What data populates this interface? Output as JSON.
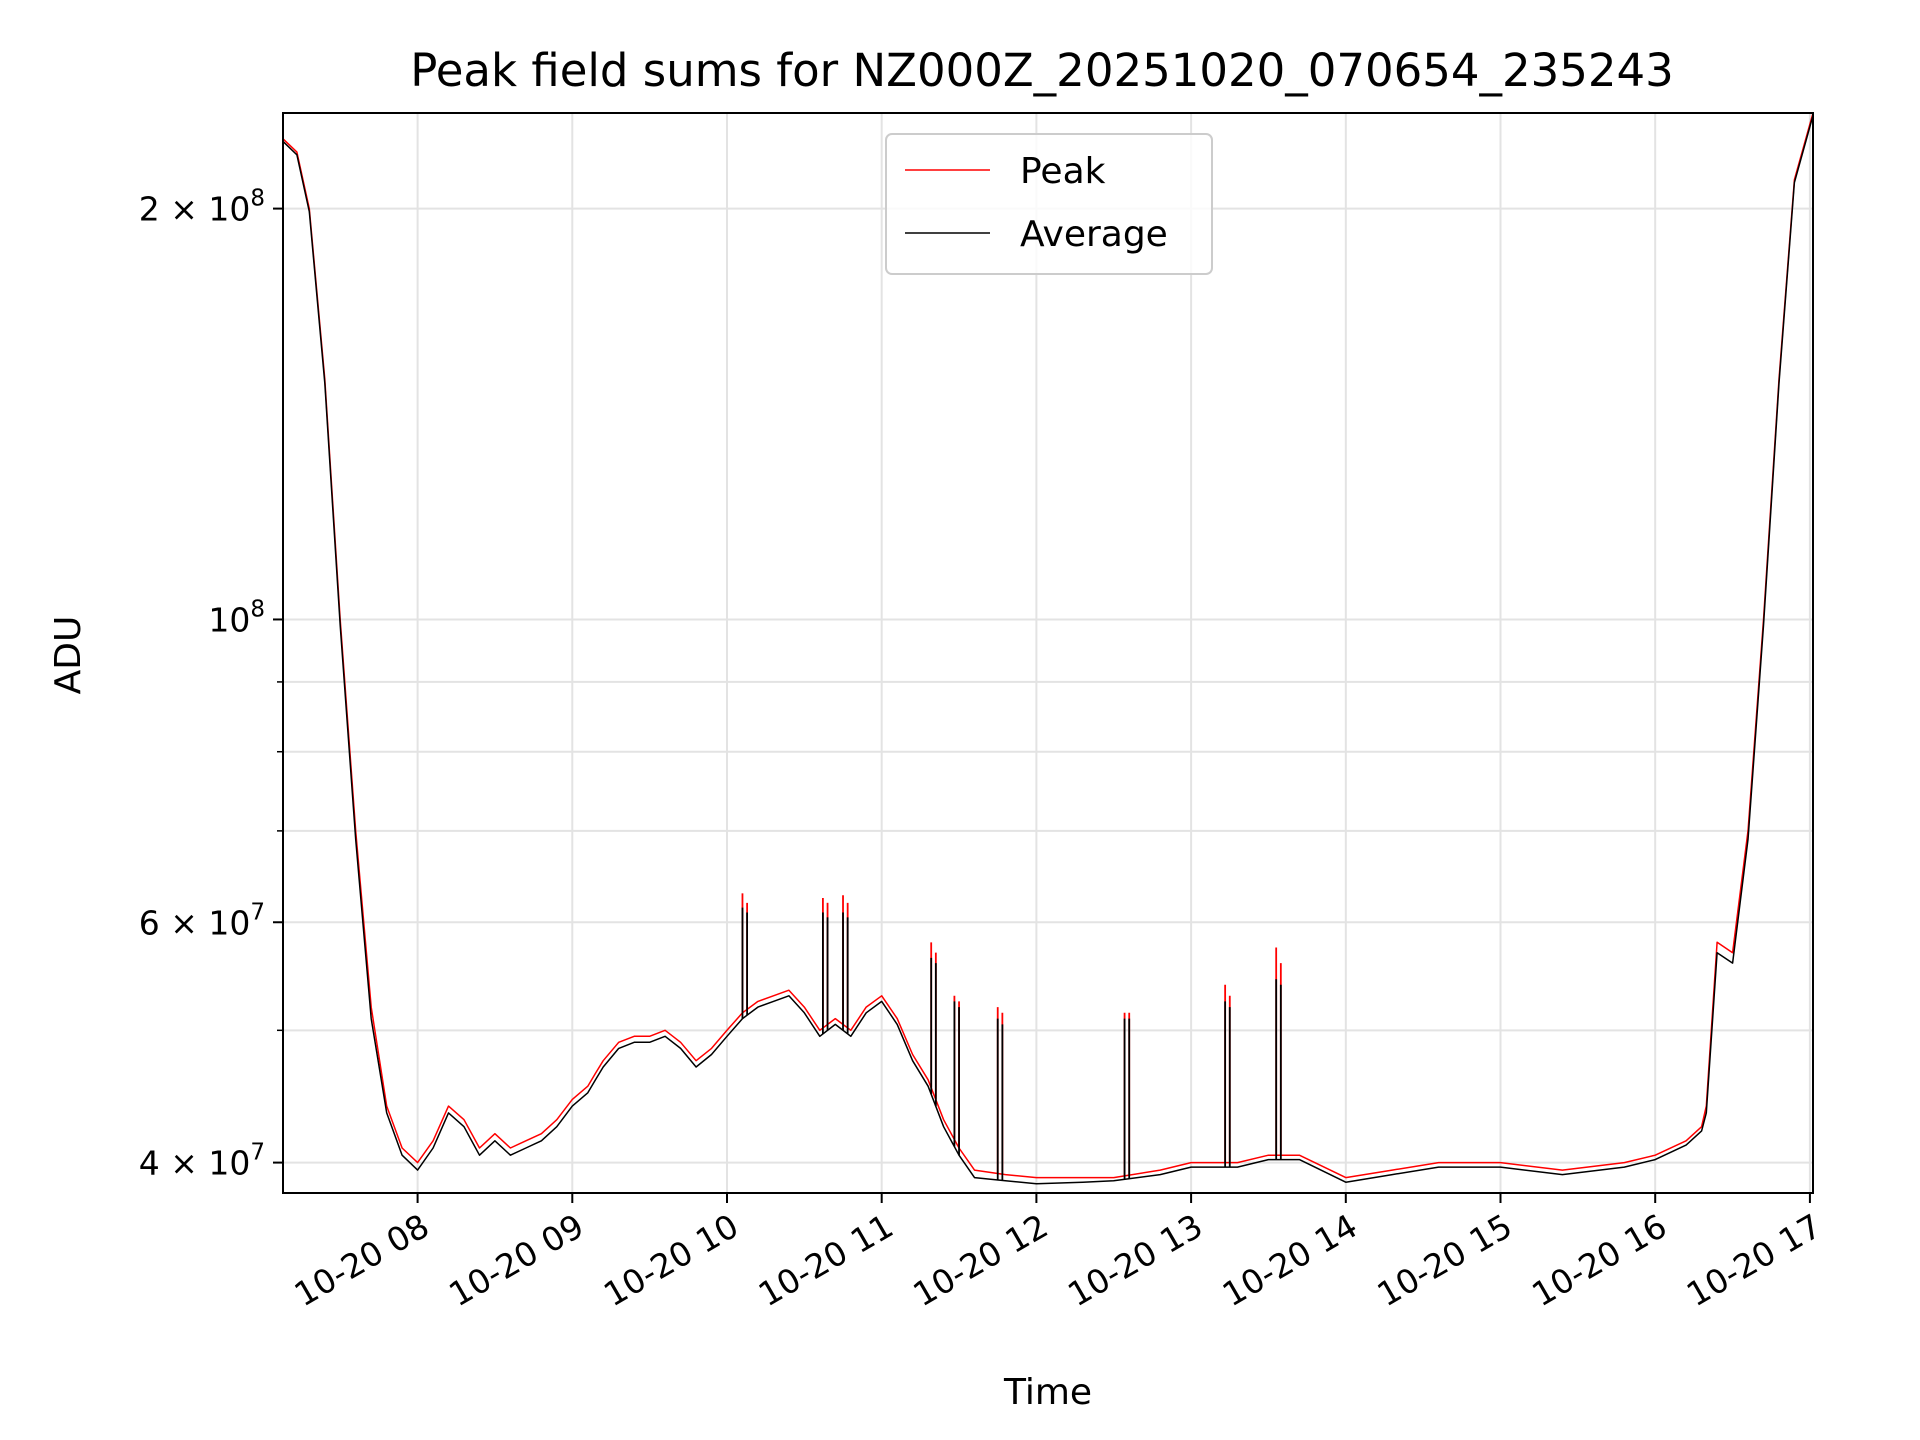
{
  "chart_data": {
    "type": "line",
    "title": "Peak field sums for NZ000Z_20251020_070654_235243",
    "xlabel": "Time",
    "ylabel": "ADU",
    "yscale": "log",
    "grid": true,
    "legend_position": "top-center",
    "xlim": [
      7.13,
      17.02
    ],
    "ylim": [
      38000000,
      235000000
    ],
    "x_ticks": [
      {
        "value": 8,
        "label": "10-20 08"
      },
      {
        "value": 9,
        "label": "10-20 09"
      },
      {
        "value": 10,
        "label": "10-20 10"
      },
      {
        "value": 11,
        "label": "10-20 11"
      },
      {
        "value": 12,
        "label": "10-20 12"
      },
      {
        "value": 13,
        "label": "10-20 13"
      },
      {
        "value": 14,
        "label": "10-20 14"
      },
      {
        "value": 15,
        "label": "10-20 15"
      },
      {
        "value": 16,
        "label": "10-20 16"
      },
      {
        "value": 17,
        "label": "10-20 17"
      }
    ],
    "y_major_ticks": [
      {
        "value": 40000000,
        "base": "4 × 10",
        "exp": "7"
      },
      {
        "value": 60000000,
        "base": "6 × 10",
        "exp": "7"
      },
      {
        "value": 100000000,
        "base": "10",
        "exp": "8"
      },
      {
        "value": 200000000,
        "base": "2 × 10",
        "exp": "8"
      }
    ],
    "y_minor_ticks": [
      50000000,
      70000000,
      80000000,
      90000000
    ],
    "series": [
      {
        "name": "Peak",
        "color": "#ff0000",
        "x": [
          7.13,
          7.22,
          7.3,
          7.4,
          7.5,
          7.6,
          7.7,
          7.8,
          7.9,
          8.0,
          8.1,
          8.2,
          8.3,
          8.4,
          8.5,
          8.6,
          8.7,
          8.8,
          8.9,
          9.0,
          9.1,
          9.15,
          9.2,
          9.3,
          9.4,
          9.5,
          9.6,
          9.7,
          9.8,
          9.9,
          10.0,
          10.1,
          10.2,
          10.3,
          10.4,
          10.5,
          10.6,
          10.7,
          10.8,
          10.9,
          11.0,
          11.1,
          11.2,
          11.3,
          11.4,
          11.5,
          11.6,
          11.8,
          12.0,
          12.3,
          12.5,
          12.8,
          13.0,
          13.3,
          13.5,
          13.7,
          14.0,
          14.3,
          14.6,
          15.0,
          15.4,
          15.8,
          16.0,
          16.2,
          16.3,
          16.33,
          16.4,
          16.5,
          16.6,
          16.7,
          16.8,
          16.9,
          17.02
        ],
        "y": [
          225000000,
          220000000,
          200000000,
          150000000,
          100000000,
          70000000,
          52000000,
          44000000,
          41000000,
          40000000,
          41500000,
          44000000,
          43000000,
          41000000,
          42000000,
          41000000,
          41500000,
          42000000,
          43000000,
          44500000,
          45500000,
          46500000,
          47500000,
          49000000,
          49500000,
          49500000,
          50000000,
          49000000,
          47500000,
          48500000,
          50000000,
          51500000,
          52500000,
          53000000,
          53500000,
          52000000,
          50000000,
          51000000,
          50000000,
          52000000,
          53000000,
          51000000,
          48000000,
          46000000,
          43000000,
          41000000,
          39500000,
          39200000,
          39000000,
          39000000,
          39000000,
          39500000,
          40000000,
          40000000,
          40500000,
          40500000,
          39000000,
          39500000,
          40000000,
          40000000,
          39500000,
          40000000,
          40500000,
          41500000,
          42500000,
          44000000,
          58000000,
          57000000,
          70000000,
          100000000,
          150000000,
          210000000,
          235000000
        ]
      },
      {
        "name": "Average",
        "color": "#000000",
        "x": [
          7.13,
          7.22,
          7.3,
          7.4,
          7.5,
          7.6,
          7.7,
          7.8,
          7.9,
          8.0,
          8.1,
          8.2,
          8.3,
          8.4,
          8.5,
          8.6,
          8.7,
          8.8,
          8.9,
          9.0,
          9.1,
          9.15,
          9.2,
          9.3,
          9.4,
          9.5,
          9.6,
          9.7,
          9.8,
          9.9,
          10.0,
          10.1,
          10.2,
          10.3,
          10.4,
          10.5,
          10.6,
          10.7,
          10.8,
          10.9,
          11.0,
          11.1,
          11.2,
          11.3,
          11.4,
          11.5,
          11.6,
          11.8,
          12.0,
          12.3,
          12.5,
          12.8,
          13.0,
          13.3,
          13.5,
          13.7,
          14.0,
          14.3,
          14.6,
          15.0,
          15.4,
          15.8,
          16.0,
          16.2,
          16.3,
          16.33,
          16.4,
          16.5,
          16.6,
          16.7,
          16.8,
          16.9,
          17.02
        ],
        "y": [
          224000000,
          219000000,
          199000000,
          149000000,
          99000000,
          69000000,
          51000000,
          43500000,
          40500000,
          39500000,
          41000000,
          43500000,
          42500000,
          40500000,
          41500000,
          40500000,
          41000000,
          41500000,
          42500000,
          44000000,
          45000000,
          46000000,
          47000000,
          48500000,
          49000000,
          49000000,
          49500000,
          48500000,
          47000000,
          48000000,
          49500000,
          51000000,
          52000000,
          52500000,
          53000000,
          51500000,
          49500000,
          50500000,
          49500000,
          51500000,
          52500000,
          50500000,
          47500000,
          45500000,
          42500000,
          40500000,
          39000000,
          38800000,
          38600000,
          38700000,
          38800000,
          39200000,
          39700000,
          39700000,
          40200000,
          40200000,
          38700000,
          39200000,
          39700000,
          39700000,
          39200000,
          39700000,
          40200000,
          41200000,
          42200000,
          43500000,
          57000000,
          56000000,
          69000000,
          99000000,
          149000000,
          209000000,
          234000000
        ]
      }
    ],
    "spikes": [
      {
        "series": "Peak",
        "x": [
          10.1,
          10.13,
          10.62,
          10.65,
          10.75,
          10.78,
          11.32,
          11.35,
          11.47,
          11.5,
          11.75,
          11.78,
          12.57,
          12.6,
          13.22,
          13.25,
          13.55,
          13.58
        ],
        "top": [
          63000000,
          62000000,
          62500000,
          62000000,
          62800000,
          62000000,
          58000000,
          57000000,
          53000000,
          52500000,
          52000000,
          51500000,
          51500000,
          51500000,
          54000000,
          53000000,
          57500000,
          56000000
        ]
      },
      {
        "series": "Average",
        "x": [
          10.1,
          10.13,
          10.62,
          10.65,
          10.75,
          10.78,
          11.32,
          11.35,
          11.47,
          11.5,
          11.75,
          11.78,
          12.57,
          12.6,
          13.22,
          13.25,
          13.55,
          13.58
        ],
        "top": [
          61500000,
          61000000,
          61000000,
          60500000,
          61000000,
          60500000,
          56500000,
          56000000,
          52500000,
          52000000,
          51000000,
          50500000,
          51000000,
          51000000,
          52500000,
          52000000,
          54500000,
          54000000
        ]
      }
    ]
  }
}
